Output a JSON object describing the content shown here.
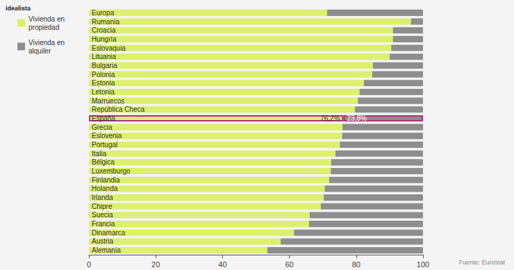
{
  "chart_data": {
    "type": "bar",
    "title": "idealista",
    "source": "Fuente: Eurostat",
    "orientation": "horizontal",
    "stacked": true,
    "grid": false,
    "legend": "top-left",
    "data_labels": true,
    "categories": [
      "Europa",
      "Rumania",
      "Croacia",
      "Hungría",
      "Eslovaquia",
      "Lituania",
      "Bulgaria",
      "Polonia",
      "Estonia",
      "Letonia",
      "Marruecos",
      "República Checa",
      "España",
      "Grecia",
      "Eslovenia",
      "Portugal",
      "Italia",
      "Bélgica",
      "Luxemburgo",
      "Finlandia",
      "Holanda",
      "Irlanda",
      "Chipre",
      "Suecia",
      "Francia",
      "Dinamarca",
      "Austria",
      "Alemania"
    ],
    "series": [
      {
        "name": "Vivienda en propiedad",
        "color": "#dcf06c",
        "values": [
          71.3,
          96.4,
          91.0,
          91.0,
          90.5,
          90.0,
          85.0,
          84.8,
          82.3,
          81.0,
          80.5,
          79.6,
          76.2,
          75.9,
          75.8,
          75.1,
          73.8,
          72.5,
          72.4,
          71.9,
          70.6,
          70.3,
          69.4,
          66.1,
          65.9,
          61.4,
          57.4,
          53.4
        ],
        "value_labels": [
          null,
          null,
          null,
          null,
          null,
          null,
          null,
          null,
          null,
          null,
          null,
          null,
          "76,2%",
          null,
          null,
          null,
          null,
          null,
          null,
          null,
          null,
          null,
          null,
          null,
          null,
          null,
          null,
          null
        ]
      },
      {
        "name": "Vivienda en alquiler",
        "color": "#8e8e8e",
        "values": [
          28.7,
          3.6,
          9.0,
          9.0,
          9.5,
          10.0,
          15.0,
          15.2,
          17.7,
          19.0,
          19.5,
          20.4,
          23.8,
          24.1,
          24.2,
          24.9,
          26.2,
          27.5,
          27.6,
          28.1,
          29.4,
          29.7,
          30.6,
          33.9,
          34.1,
          38.6,
          42.6,
          46.6
        ],
        "value_labels": [
          null,
          null,
          null,
          null,
          null,
          null,
          null,
          null,
          null,
          null,
          null,
          null,
          "23,8%",
          null,
          null,
          null,
          null,
          null,
          null,
          null,
          null,
          null,
          null,
          null,
          null,
          null,
          null,
          null
        ]
      }
    ],
    "xlim": [
      0,
      100
    ],
    "xticks": [
      0,
      20,
      40,
      60,
      80,
      100
    ]
  }
}
